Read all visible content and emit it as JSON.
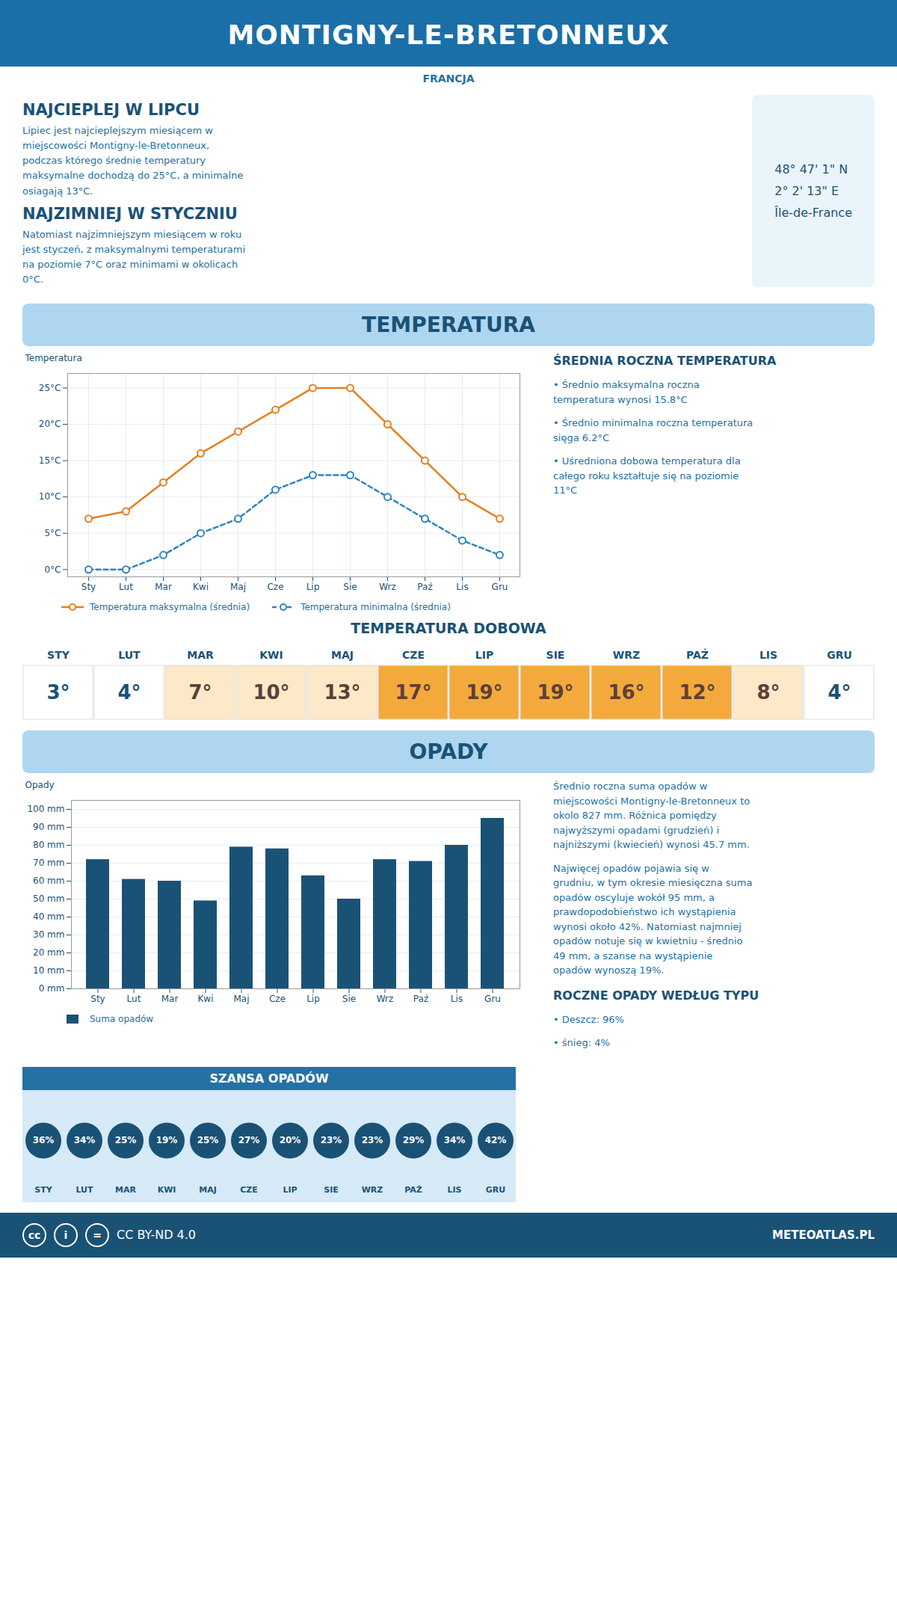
{
  "title": "MONTIGNY-LE-BRETONNEUX",
  "subtitle": "FRANCJA",
  "annotations": [
    "NAJCIEPLEJ W LIPCU",
    "Lipiec jest najcieplejszym miesiącem w\nmiejscowości Montigny-le-Bretonneux,\npodczas którego średnie temperatury\nmaksymalne dochodzą do 25°C, a minimalne\nosiagają 13°C.",
    "NAJZIMNIEJ W STYCZNIU",
    "Natomiast najzimniejszym miesiącem w roku\njest styczeń, z maksymalnymi temperaturami\nna poziomie 7°C oraz minimami w okolicach\n0°C.",
    "48° 47' 1\" N",
    "2° 2' 13\" E",
    "Île-de-France",
    "cc",
    "i",
    "=",
    "CC BY-ND 4.0",
    "METEOATLAS.PL"
  ],
  "chart_data": [
    {
      "type": "line",
      "title": "TEMPERATURA",
      "categories": [
        "Sty",
        "Lut",
        "Mar",
        "Kwi",
        "Maj",
        "Cze",
        "Lip",
        "Sie",
        "Wrz",
        "Paź",
        "Lis",
        "Gru"
      ],
      "series": [
        {
          "name": "Temperatura maksymalna (średnia)",
          "color": "#e67e22",
          "marker": "circle",
          "line_style": "solid",
          "values": [
            7,
            8,
            12,
            16,
            19,
            22,
            25,
            25,
            20,
            15,
            10,
            7
          ]
        },
        {
          "name": "Temperatura minimalna (średnia)",
          "color": "#2e86c1",
          "marker": "circle",
          "line_style": "dashed",
          "values": [
            0,
            0,
            2,
            5,
            7,
            11,
            13,
            13,
            10,
            7,
            4,
            2
          ]
        }
      ],
      "ylim": [
        -1,
        27
      ],
      "yticks": [
        {
          "value": 0,
          "label": "0°C"
        },
        {
          "value": 5,
          "label": "5°C"
        },
        {
          "value": 10,
          "label": "10°C"
        },
        {
          "value": 15,
          "label": "15°C"
        },
        {
          "value": 20,
          "label": "20°C"
        },
        {
          "value": 25,
          "label": "25°C"
        }
      ],
      "ylabel": "Temperatura",
      "grid": true,
      "legend": "bottom",
      "annotations": [
        "ŚREDNIA ROCZNA TEMPERATURA",
        "• Średnio maksymalna roczna\ntemperatura wynosi 15.8°C",
        "• Średnio minimalna roczna temperatura\nsięga 6.2°C",
        "• Uśredniona dobowa temperatura dla\ncałego roku kształtuje się na poziomie\n11°C"
      ]
    },
    {
      "type": "table",
      "title": "TEMPERATURA DOBOWA",
      "categories": [
        "STY",
        "LUT",
        "MAR",
        "KWI",
        "MAJ",
        "CZE",
        "LIP",
        "SIE",
        "WRZ",
        "PAŹ",
        "LIS",
        "GRU"
      ],
      "values": [
        3,
        4,
        7,
        10,
        13,
        17,
        19,
        19,
        16,
        12,
        8,
        4
      ],
      "value_labels": [
        "3°",
        "4°",
        "7°",
        "10°",
        "13°",
        "17°",
        "19°",
        "19°",
        "16°",
        "12°",
        "8°",
        "4°"
      ],
      "colors": [
        "#ffffff",
        "#ffffff",
        "#fde8c8",
        "#fde8c8",
        "#fde8c8",
        "#f4a93c",
        "#f4a93c",
        "#f4a93c",
        "#f4a93c",
        "#f4a93c",
        "#fde8c8",
        "#ffffff"
      ],
      "data_labels": true,
      "tick_labels": "x"
    },
    {
      "type": "bar",
      "title": "OPADY",
      "categories": [
        "Sty",
        "Lut",
        "Mar",
        "Kwi",
        "Maj",
        "Cze",
        "Lip",
        "Sie",
        "Wrz",
        "Paź",
        "Lis",
        "Gru"
      ],
      "series": [
        {
          "name": "Suma opadów",
          "color": "#1a5276",
          "values": [
            72,
            61,
            60,
            49,
            79,
            78,
            63,
            50,
            72,
            71,
            80,
            95
          ]
        }
      ],
      "ylim": [
        0,
        105
      ],
      "yticks": [
        {
          "value": 0,
          "label": "0 mm"
        },
        {
          "value": 10,
          "label": "10 mm"
        },
        {
          "value": 20,
          "label": "20 mm"
        },
        {
          "value": 30,
          "label": "30 mm"
        },
        {
          "value": 40,
          "label": "40 mm"
        },
        {
          "value": 50,
          "label": "50 mm"
        },
        {
          "value": 60,
          "label": "60 mm"
        },
        {
          "value": 70,
          "label": "70 mm"
        },
        {
          "value": 80,
          "label": "80 mm"
        },
        {
          "value": 90,
          "label": "90 mm"
        },
        {
          "value": 100,
          "label": "100 mm"
        }
      ],
      "ylabel": "Opady",
      "grid": true,
      "legend": "bottom",
      "annotations": [
        "Średnio roczna suma opadów w\nmiejscowości Montigny-le-Bretonneux to\nokolo 827 mm. Różnica pomiędzy\nnajwyższymi opadami (grudzień) i\nnajniższymi (kwiecień) wynosi 45.7 mm.",
        "Najwięcej opadów pojawia się w\ngrudniu, w tym okresie miesięczna suma\nopadów oscyluje wokół 95 mm, a\nprawdopodobieństwo ich wystąpienia\nwynosi około 42%. Natomiast najmniej\nopadów notuje się w kwietniu - średnio\n49 mm, a szanse na wystąpienie\nopadów wynoszą 19%.",
        "ROCZNE OPADY WEDŁUG TYPU",
        "• Deszcz: 96%",
        "• śnieg: 4%"
      ]
    },
    {
      "type": "dot",
      "title": "SZANSA OPADÓW",
      "categories": [
        "STY",
        "LUT",
        "MAR",
        "KWI",
        "MAJ",
        "CZE",
        "LIP",
        "SIE",
        "WRZ",
        "PAŹ",
        "LIS",
        "GRU"
      ],
      "values": [
        36,
        34,
        25,
        19,
        25,
        27,
        20,
        23,
        23,
        29,
        34,
        42
      ],
      "value_labels": [
        "36%",
        "34%",
        "25%",
        "19%",
        "25%",
        "27%",
        "20%",
        "23%",
        "23%",
        "29%",
        "34%",
        "42%"
      ],
      "color": "#1a5276",
      "data_labels": true,
      "tick_labels": "x"
    }
  ]
}
